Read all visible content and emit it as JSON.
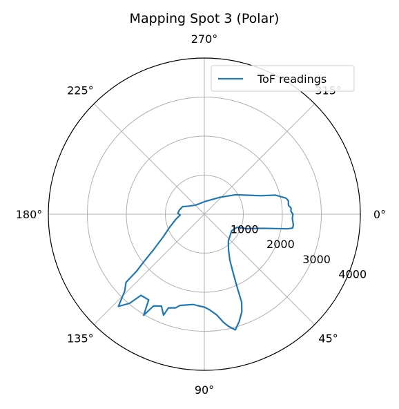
{
  "chart_data": {
    "type": "polar-line",
    "title": "Mapping Spot 3 (Polar)",
    "theta_direction": "clockwise",
    "theta_zero": "east",
    "theta_ticks": [
      0,
      45,
      90,
      135,
      180,
      225,
      270,
      315
    ],
    "theta_tick_labels": [
      "0°",
      "45°",
      "90°",
      "135°",
      "180°",
      "225°",
      "270°",
      "315°"
    ],
    "r_ticks": [
      1000,
      2000,
      3000,
      4000
    ],
    "r_tick_labels": [
      "1000",
      "2000",
      "3000",
      "4000"
    ],
    "r_lim": [
      0,
      4000
    ],
    "grid": true,
    "legend_position": "upper-right",
    "series": [
      {
        "name": "ToF readings",
        "color": "#1f77b4",
        "points": [
          {
            "theta": 349,
            "r": 2140
          },
          {
            "theta": 351,
            "r": 2180
          },
          {
            "theta": 354,
            "r": 2170
          },
          {
            "theta": 356,
            "r": 2230
          },
          {
            "theta": 358,
            "r": 2220
          },
          {
            "theta": 0,
            "r": 2270
          },
          {
            "theta": 3,
            "r": 2260
          },
          {
            "theta": 5,
            "r": 2280
          },
          {
            "theta": 7,
            "r": 2300
          },
          {
            "theta": 9,
            "r": 2290
          },
          {
            "theta": 10,
            "r": 2160
          },
          {
            "theta": 12,
            "r": 1760
          },
          {
            "theta": 14,
            "r": 1500
          },
          {
            "theta": 19,
            "r": 1140
          },
          {
            "theta": 22,
            "r": 900
          },
          {
            "theta": 31,
            "r": 820
          },
          {
            "theta": 48,
            "r": 920
          },
          {
            "theta": 56,
            "r": 1110
          },
          {
            "theta": 61,
            "r": 1350
          },
          {
            "theta": 64,
            "r": 1700
          },
          {
            "theta": 66,
            "r": 2100
          },
          {
            "theta": 67,
            "r": 2450
          },
          {
            "theta": 69,
            "r": 2680
          },
          {
            "theta": 72,
            "r": 2890
          },
          {
            "theta": 75,
            "r": 3070
          },
          {
            "theta": 78,
            "r": 2930
          },
          {
            "theta": 80,
            "r": 2810
          },
          {
            "theta": 83,
            "r": 2600
          },
          {
            "theta": 87,
            "r": 2450
          },
          {
            "theta": 90,
            "r": 2380
          },
          {
            "theta": 94,
            "r": 2350
          },
          {
            "theta": 97,
            "r": 2330
          },
          {
            "theta": 101,
            "r": 2370
          },
          {
            "theta": 105,
            "r": 2420
          },
          {
            "theta": 107,
            "r": 2510
          },
          {
            "theta": 111,
            "r": 2570
          },
          {
            "theta": 112,
            "r": 2790
          },
          {
            "theta": 115,
            "r": 2600
          },
          {
            "theta": 119,
            "r": 2690
          },
          {
            "theta": 121,
            "r": 3020
          },
          {
            "theta": 123,
            "r": 2620
          },
          {
            "theta": 128,
            "r": 2640
          },
          {
            "theta": 130,
            "r": 2980
          },
          {
            "theta": 133,
            "r": 3230
          },
          {
            "theta": 136,
            "r": 2840
          },
          {
            "theta": 139,
            "r": 2660
          },
          {
            "theta": 140,
            "r": 2260
          },
          {
            "theta": 142,
            "r": 1950
          },
          {
            "theta": 145,
            "r": 1590
          },
          {
            "theta": 151,
            "r": 1210
          },
          {
            "theta": 159,
            "r": 960
          },
          {
            "theta": 170,
            "r": 740
          },
          {
            "theta": 178,
            "r": 620
          },
          {
            "theta": 182,
            "r": 680
          },
          {
            "theta": 189,
            "r": 650
          },
          {
            "theta": 199,
            "r": 590
          },
          {
            "theta": 208,
            "r": 440
          },
          {
            "theta": 227,
            "r": 320
          },
          {
            "theta": 275,
            "r": 330
          },
          {
            "theta": 313,
            "r": 590
          },
          {
            "theta": 328,
            "r": 940
          },
          {
            "theta": 337,
            "r": 1240
          },
          {
            "theta": 342,
            "r": 1530
          },
          {
            "theta": 345,
            "r": 1890
          },
          {
            "theta": 349,
            "r": 2140
          }
        ]
      }
    ]
  }
}
